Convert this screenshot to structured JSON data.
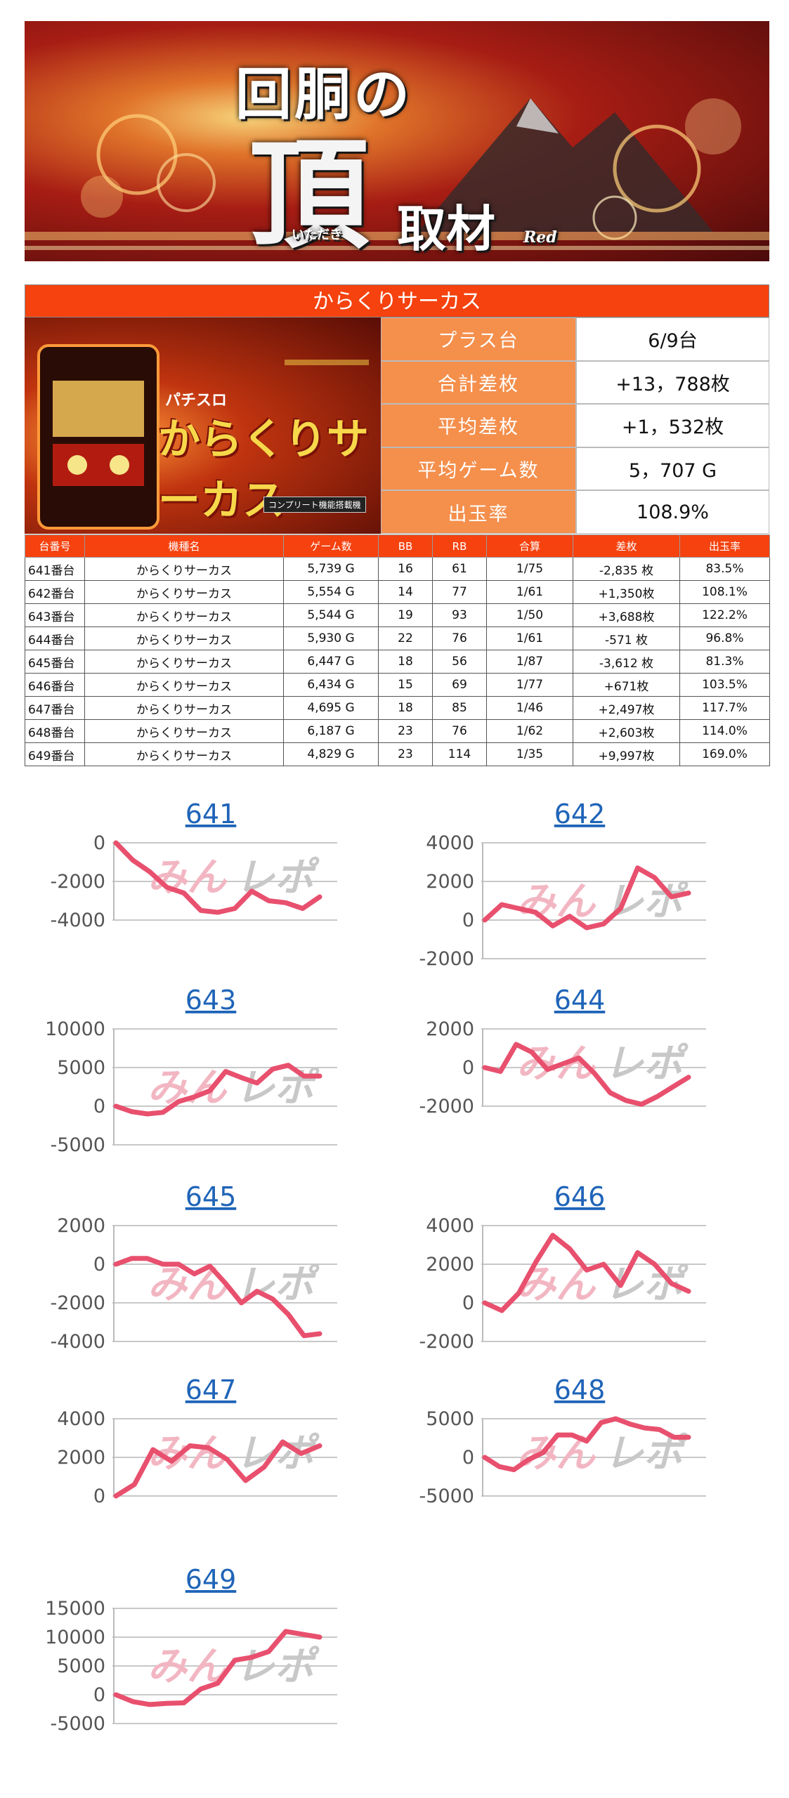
{
  "banner": {
    "line1": "回胴の",
    "line2": "頂",
    "line3": "取材",
    "ruby": "いただき",
    "tag": "Red"
  },
  "summary": {
    "title": "からくりサーカス",
    "product_logo_small": "パチスロ",
    "product_logo": "からくりサーカス",
    "product_badge": "コンプリート機能搭載機",
    "stats": [
      {
        "label": "プラス台",
        "value": "6/9台"
      },
      {
        "label": "合計差枚",
        "value": "+13，788枚"
      },
      {
        "label": "平均差枚",
        "value": "+1，532枚"
      },
      {
        "label": "平均ゲーム数",
        "value": "5，707 G"
      },
      {
        "label": "出玉率",
        "value": "108.9%"
      }
    ]
  },
  "table": {
    "headers": [
      "台番号",
      "機種名",
      "ゲーム数",
      "BB",
      "RB",
      "合算",
      "差枚",
      "出玉率"
    ],
    "rows": [
      {
        "no": "641番台",
        "name": "からくりサーカス",
        "games": "5,739 G",
        "bb": "16",
        "rb": "61",
        "combined": "1/75",
        "diff": "-2,835 枚",
        "rate": "83.5%",
        "sign": "neg"
      },
      {
        "no": "642番台",
        "name": "からくりサーカス",
        "games": "5,554 G",
        "bb": "14",
        "rb": "77",
        "combined": "1/61",
        "diff": "+1,350枚",
        "rate": "108.1%",
        "sign": "pos"
      },
      {
        "no": "643番台",
        "name": "からくりサーカス",
        "games": "5,544 G",
        "bb": "19",
        "rb": "93",
        "combined": "1/50",
        "diff": "+3,688枚",
        "rate": "122.2%",
        "sign": "pos"
      },
      {
        "no": "644番台",
        "name": "からくりサーカス",
        "games": "5,930 G",
        "bb": "22",
        "rb": "76",
        "combined": "1/61",
        "diff": "-571 枚",
        "rate": "96.8%",
        "sign": "neg"
      },
      {
        "no": "645番台",
        "name": "からくりサーカス",
        "games": "6,447 G",
        "bb": "18",
        "rb": "56",
        "combined": "1/87",
        "diff": "-3,612 枚",
        "rate": "81.3%",
        "sign": "neg"
      },
      {
        "no": "646番台",
        "name": "からくりサーカス",
        "games": "6,434 G",
        "bb": "15",
        "rb": "69",
        "combined": "1/77",
        "diff": "+671枚",
        "rate": "103.5%",
        "sign": "pos"
      },
      {
        "no": "647番台",
        "name": "からくりサーカス",
        "games": "4,695 G",
        "bb": "18",
        "rb": "85",
        "combined": "1/46",
        "diff": "+2,497枚",
        "rate": "117.7%",
        "sign": "pos"
      },
      {
        "no": "648番台",
        "name": "からくりサーカス",
        "games": "6,187 G",
        "bb": "23",
        "rb": "76",
        "combined": "1/62",
        "diff": "+2,603枚",
        "rate": "114.0%",
        "sign": "pos"
      },
      {
        "no": "649番台",
        "name": "からくりサーカス",
        "games": "4,829 G",
        "bb": "23",
        "rb": "114",
        "combined": "1/35",
        "diff": "+9,997枚",
        "rate": "169.0%",
        "sign": "pos"
      }
    ]
  },
  "watermark": {
    "part1": "みん",
    "part2": "レポ"
  },
  "chart_data": [
    {
      "type": "line",
      "title": "641",
      "ylim": [
        -4000,
        0
      ],
      "yticks": [
        "0",
        "-2000",
        "-4000"
      ],
      "grid": true,
      "color": "#e8506e",
      "values": [
        0,
        -900,
        -1500,
        -2300,
        -2600,
        -3500,
        -3600,
        -3400,
        -2500,
        -3000,
        -3100,
        -3400,
        -2800
      ]
    },
    {
      "type": "line",
      "title": "642",
      "ylim": [
        -2000,
        4000
      ],
      "yticks": [
        "4000",
        "2000",
        "0",
        "-2000"
      ],
      "grid": true,
      "color": "#e8506e",
      "values": [
        0,
        800,
        600,
        400,
        -300,
        200,
        -400,
        -200,
        600,
        2700,
        2200,
        1200,
        1400
      ]
    },
    {
      "type": "line",
      "title": "643",
      "ylim": [
        -5000,
        10000
      ],
      "yticks": [
        "10000",
        "5000",
        "0",
        "-5000"
      ],
      "grid": true,
      "color": "#e8506e",
      "values": [
        0,
        -700,
        -1000,
        -800,
        600,
        1200,
        2000,
        4500,
        3700,
        3000,
        4800,
        5300,
        3900,
        3900
      ]
    },
    {
      "type": "line",
      "title": "644",
      "ylim": [
        -2000,
        2000
      ],
      "yticks": [
        "2000",
        "0",
        "-2000"
      ],
      "grid": true,
      "color": "#e8506e",
      "values": [
        0,
        -200,
        1200,
        800,
        -100,
        200,
        500,
        -300,
        -1300,
        -1700,
        -1900,
        -1500,
        -1000,
        -500
      ]
    },
    {
      "type": "line",
      "title": "645",
      "ylim": [
        -4000,
        2000
      ],
      "yticks": [
        "2000",
        "0",
        "-2000",
        "-4000"
      ],
      "grid": true,
      "color": "#e8506e",
      "values": [
        0,
        300,
        300,
        0,
        0,
        -500,
        -100,
        -1000,
        -2000,
        -1400,
        -1800,
        -2600,
        -3700,
        -3600
      ]
    },
    {
      "type": "line",
      "title": "646",
      "ylim": [
        -2000,
        4000
      ],
      "yticks": [
        "4000",
        "2000",
        "0",
        "-2000"
      ],
      "grid": true,
      "color": "#e8506e",
      "values": [
        0,
        -400,
        500,
        2100,
        3500,
        2800,
        1700,
        2000,
        900,
        2600,
        2000,
        1000,
        600
      ]
    },
    {
      "type": "line",
      "title": "647",
      "ylim": [
        0,
        4000
      ],
      "yticks": [
        "4000",
        "2000",
        "0"
      ],
      "grid": true,
      "color": "#e8506e",
      "values": [
        0,
        600,
        2400,
        1800,
        2600,
        2500,
        1900,
        800,
        1500,
        2800,
        2200,
        2600
      ]
    },
    {
      "type": "line",
      "title": "648",
      "ylim": [
        -5000,
        5000
      ],
      "yticks": [
        "5000",
        "0",
        "-5000"
      ],
      "grid": true,
      "color": "#e8506e",
      "values": [
        0,
        -1200,
        -1600,
        -300,
        600,
        2900,
        2900,
        2100,
        4500,
        5000,
        4300,
        3800,
        3600,
        2600,
        2600
      ]
    },
    {
      "type": "line",
      "title": "649",
      "ylim": [
        -5000,
        15000
      ],
      "yticks": [
        "15000",
        "10000",
        "5000",
        "0",
        "-5000"
      ],
      "grid": true,
      "color": "#e8506e",
      "values": [
        0,
        -1200,
        -1700,
        -1500,
        -1400,
        1000,
        2000,
        6000,
        6500,
        7500,
        11000,
        10500,
        10000
      ]
    }
  ]
}
